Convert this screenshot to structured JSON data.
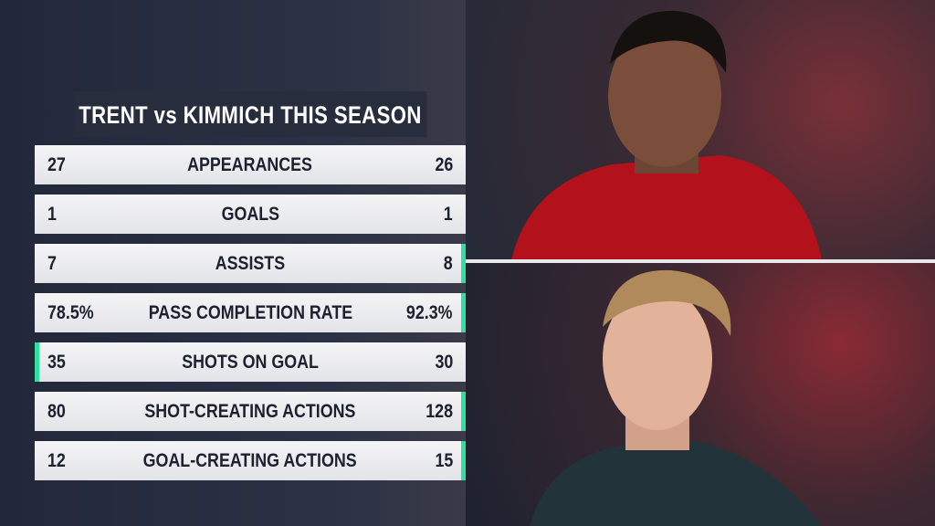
{
  "title": "TRENT vs KIMMICH THIS SEASON",
  "rows": [
    {
      "left": "27",
      "label": "APPEARANCES",
      "right": "26",
      "highlight": null
    },
    {
      "left": "1",
      "label": "GOALS",
      "right": "1",
      "highlight": null
    },
    {
      "left": "7",
      "label": "ASSISTS",
      "right": "8",
      "highlight": "right"
    },
    {
      "left": "78.5%",
      "label": "PASS COMPLETION RATE",
      "right": "92.3%",
      "highlight": "right"
    },
    {
      "left": "35",
      "label": "SHOTS ON GOAL",
      "right": "30",
      "highlight": "left"
    },
    {
      "left": "80",
      "label": "SHOT-CREATING ACTIONS",
      "right": "128",
      "highlight": "right"
    },
    {
      "left": "12",
      "label": "GOAL-CREATING ACTIONS",
      "right": "15",
      "highlight": "right"
    }
  ]
}
